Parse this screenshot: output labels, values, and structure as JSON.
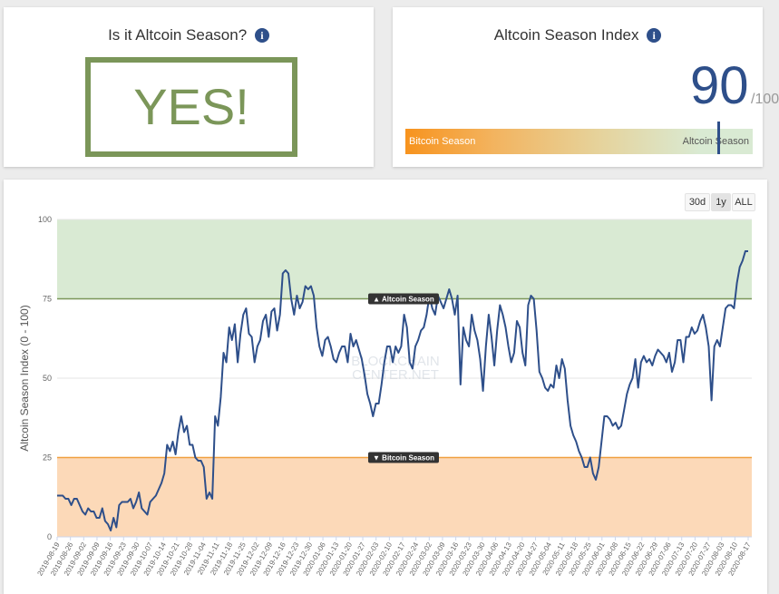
{
  "question_card": {
    "title": "Is it Altcoin Season?",
    "answer": "YES!",
    "info_icon": "info-icon"
  },
  "index_card": {
    "title": "Altcoin Season Index",
    "value": "90",
    "max": "/100",
    "bar_left": "Bitcoin Season",
    "bar_right": "Altcoin Season",
    "index_value": 90,
    "info_icon": "info-icon"
  },
  "range_buttons": [
    {
      "label": "30d",
      "selected": false
    },
    {
      "label": "1y",
      "selected": true
    },
    {
      "label": "ALL",
      "selected": false
    }
  ],
  "colors": {
    "line": "#2e4f8a",
    "altcoin_zone": "#d9ead3",
    "bitcoin_zone": "#fcd9b8",
    "altcoin_line": "#7b9659",
    "bitcoin_line": "#f0a040"
  },
  "chart_data": {
    "type": "line",
    "title": "",
    "xlabel": "",
    "ylabel": "Altcoin Season Index (0 - 100)",
    "ylim": [
      0,
      100
    ],
    "yticks": [
      0,
      25,
      50,
      75,
      100
    ],
    "xticks": [
      "2019-08-19",
      "2019-08-26",
      "2019-09-02",
      "2019-09-09",
      "2019-09-16",
      "2019-09-23",
      "2019-09-30",
      "2019-10-07",
      "2019-10-14",
      "2019-10-21",
      "2019-10-28",
      "2019-11-04",
      "2019-11-11",
      "2019-11-18",
      "2019-11-25",
      "2019-12-02",
      "2019-12-09",
      "2019-12-16",
      "2019-12-23",
      "2019-12-30",
      "2020-01-06",
      "2020-01-13",
      "2020-01-20",
      "2020-01-27",
      "2020-02-03",
      "2020-02-10",
      "2020-02-17",
      "2020-02-24",
      "2020-03-02",
      "2020-03-09",
      "2020-03-16",
      "2020-03-23",
      "2020-03-30",
      "2020-04-06",
      "2020-04-13",
      "2020-04-20",
      "2020-04-27",
      "2020-05-04",
      "2020-05-11",
      "2020-05-18",
      "2020-05-25",
      "2020-06-01",
      "2020-06-08",
      "2020-06-15",
      "2020-06-22",
      "2020-06-29",
      "2020-07-06",
      "2020-07-13",
      "2020-07-20",
      "2020-07-27",
      "2020-08-03",
      "2020-08-10",
      "2020-08-17"
    ],
    "annotations": [
      {
        "label": "▲ Altcoin Season",
        "y": 75
      },
      {
        "label": "▼ Bitcoin Season",
        "y": 25
      }
    ],
    "watermark": [
      "BLOCKCHAIN",
      "CENTER.NET"
    ],
    "series": [
      {
        "values": [
          13,
          13,
          13,
          12,
          12,
          10,
          12,
          12,
          10,
          8,
          7,
          9,
          8,
          8,
          6,
          6,
          9,
          5,
          4,
          2,
          6,
          3,
          10,
          11,
          11,
          11,
          12,
          9,
          11,
          14,
          9,
          8,
          7,
          11,
          12,
          13,
          15,
          17,
          20,
          29,
          27,
          30,
          26,
          33,
          38,
          33,
          35,
          29,
          29,
          25,
          24,
          24,
          22,
          12,
          14,
          12,
          38,
          35,
          44,
          58,
          55,
          66,
          62,
          67,
          55,
          64,
          70,
          72,
          64,
          63,
          55,
          60,
          62,
          68,
          70,
          63,
          71,
          72,
          65,
          70,
          83,
          84,
          83,
          75,
          70,
          76,
          72,
          74,
          79,
          78,
          79,
          76,
          66,
          60,
          57,
          62,
          63,
          60,
          56,
          55,
          58,
          60,
          60,
          55,
          64,
          60,
          62,
          59,
          56,
          51,
          45,
          42,
          38,
          42,
          42,
          48,
          55,
          60,
          60,
          55,
          60,
          58,
          60,
          70,
          66,
          55,
          53,
          60,
          62,
          65,
          66,
          70,
          76,
          72,
          70,
          76,
          74,
          72,
          75,
          78,
          75,
          70,
          76,
          48,
          66,
          62,
          60,
          70,
          65,
          62,
          56,
          46,
          60,
          70,
          63,
          54,
          65,
          73,
          70,
          66,
          60,
          55,
          58,
          68,
          66,
          58,
          54,
          73,
          76,
          75,
          65,
          52,
          50,
          47,
          46,
          48,
          47,
          54,
          50,
          56,
          53,
          43,
          35,
          32,
          30,
          27,
          25,
          22,
          22,
          25,
          20,
          18,
          22,
          30,
          38,
          38,
          37,
          35,
          36,
          34,
          35,
          40,
          45,
          48,
          50,
          56,
          47,
          55,
          57,
          55,
          56,
          54,
          57,
          59,
          58,
          57,
          55,
          58,
          52,
          55,
          62,
          62,
          55,
          63,
          63,
          66,
          64,
          65,
          68,
          70,
          66,
          60,
          43,
          60,
          62,
          60,
          66,
          72,
          73,
          73,
          72,
          80,
          85,
          87,
          90,
          90
        ]
      }
    ]
  }
}
